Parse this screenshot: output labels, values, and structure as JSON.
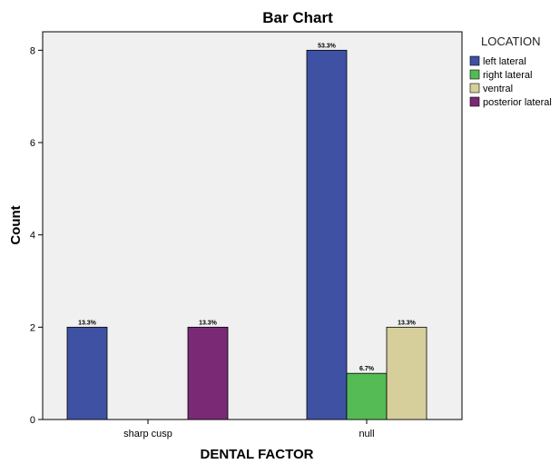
{
  "chart_data": {
    "type": "bar",
    "title": "Bar Chart",
    "xlabel": "DENTAL FACTOR",
    "ylabel": "Count",
    "categories": [
      "sharp cusp",
      "null"
    ],
    "yticks": [
      0,
      2,
      4,
      6,
      8
    ],
    "ylim": [
      0,
      8.4
    ],
    "grid": false,
    "legend": {
      "title": "LOCATION",
      "placement": "right-top"
    },
    "series": [
      {
        "name": "left lateral",
        "color": "#3F51A3",
        "values": [
          2,
          8
        ],
        "labels": [
          "13.3%",
          "53.3%"
        ]
      },
      {
        "name": "right lateral",
        "color": "#55BB55",
        "values": [
          0,
          1
        ],
        "labels": [
          "",
          "6.7%"
        ]
      },
      {
        "name": "ventral",
        "color": "#D6CF9C",
        "values": [
          0,
          2
        ],
        "labels": [
          "",
          "13.3%"
        ]
      },
      {
        "name": "posterior lateral",
        "color": "#7A2A75",
        "values": [
          2,
          0
        ],
        "labels": [
          "13.3%",
          ""
        ]
      }
    ]
  }
}
